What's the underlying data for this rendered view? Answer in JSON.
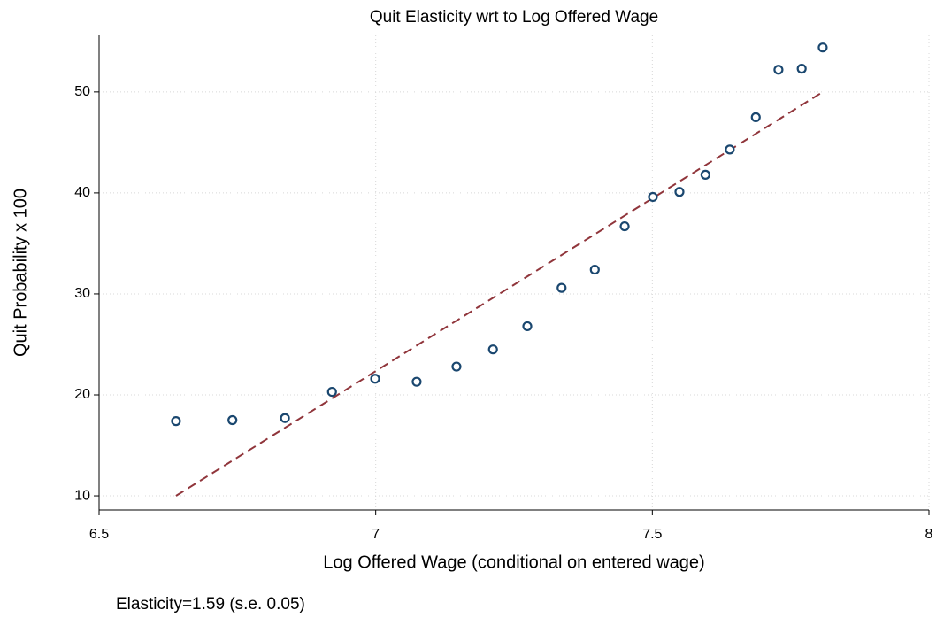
{
  "chart_data": {
    "type": "scatter",
    "title": "Quit Elasticity wrt to Log Offered Wage",
    "x_label": "Log Offered Wage (conditional on entered wage)",
    "y_label": "Quit Probability x 100",
    "annotation": "Elasticity=1.59 (s.e. 0.05)",
    "x": [
      6.639,
      6.741,
      6.836,
      6.921,
      6.999,
      7.074,
      7.146,
      7.212,
      7.274,
      7.336,
      7.396,
      7.45,
      7.501,
      7.549,
      7.596,
      7.64,
      7.687,
      7.728,
      7.77,
      7.808
    ],
    "values": [
      17.4,
      17.5,
      17.7,
      20.3,
      21.6,
      21.3,
      22.8,
      24.5,
      26.8,
      30.6,
      32.4,
      36.7,
      39.6,
      40.1,
      41.8,
      44.3,
      47.5,
      52.2,
      52.3,
      54.4
    ],
    "color": "#1a476f",
    "fit_line": {
      "x": [
        6.639,
        7.808
      ],
      "values": [
        10,
        50
      ],
      "color": "#90353b"
    },
    "xlim": [
      6.5,
      8
    ],
    "xticks": [
      6.5,
      7,
      7.5,
      8
    ],
    "ylim": [
      8.6,
      55.6
    ],
    "yticks": [
      10,
      20,
      30,
      40,
      50
    ],
    "grid": true
  }
}
